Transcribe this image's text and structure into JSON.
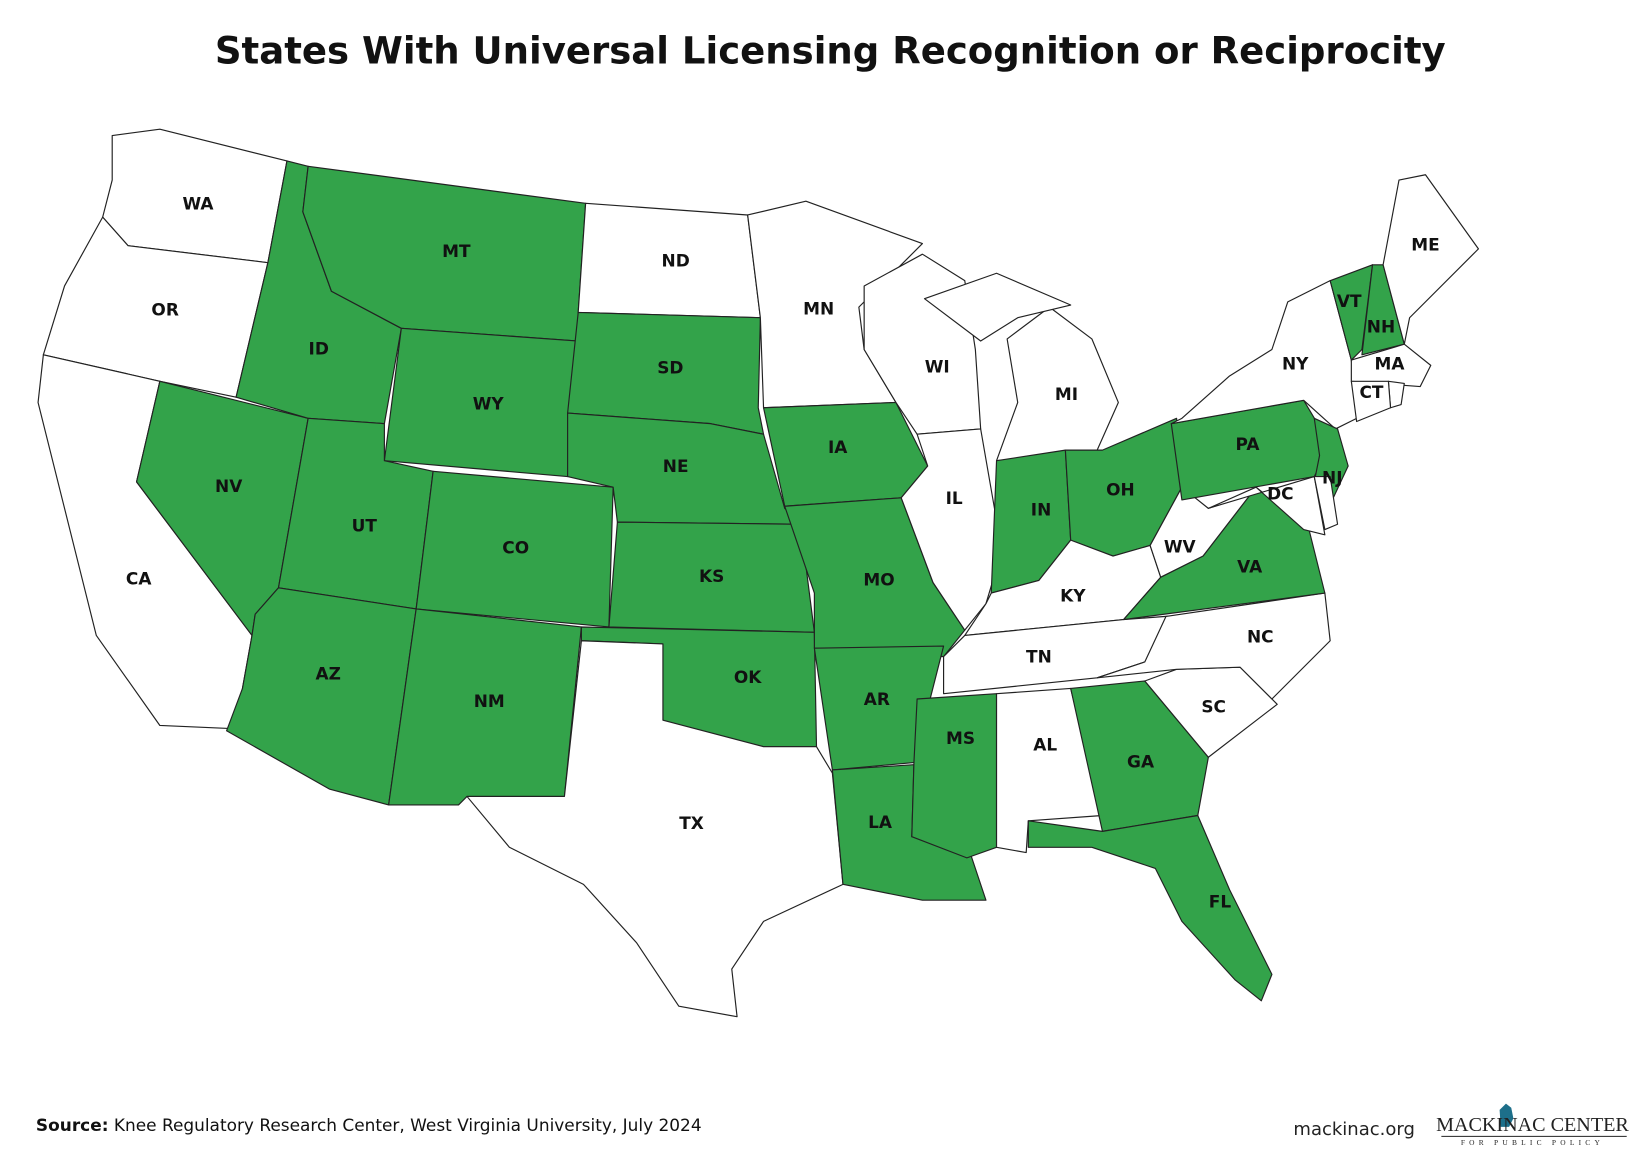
{
  "title": "States With Universal Licensing Recognition or Reciprocity",
  "states": [
    {
      "abbr": "WA",
      "color": "#ffffff"
    },
    {
      "abbr": "OR",
      "color": "#ffffff"
    },
    {
      "abbr": "CA",
      "color": "#ffffff"
    },
    {
      "abbr": "NV",
      "color": "#33a34a"
    },
    {
      "abbr": "ID",
      "color": "#33a34a"
    },
    {
      "abbr": "MT",
      "color": "#33a34a"
    },
    {
      "abbr": "WY",
      "color": "#33a34a"
    },
    {
      "abbr": "UT",
      "color": "#33a34a"
    },
    {
      "abbr": "CO",
      "color": "#33a34a"
    },
    {
      "abbr": "AZ",
      "color": "#33a34a"
    },
    {
      "abbr": "NM",
      "color": "#33a34a"
    },
    {
      "abbr": "ND",
      "color": "#ffffff"
    },
    {
      "abbr": "SD",
      "color": "#33a34a"
    },
    {
      "abbr": "NE",
      "color": "#33a34a"
    },
    {
      "abbr": "KS",
      "color": "#33a34a"
    },
    {
      "abbr": "OK",
      "color": "#33a34a"
    },
    {
      "abbr": "TX",
      "color": "#ffffff"
    },
    {
      "abbr": "MN",
      "color": "#ffffff"
    },
    {
      "abbr": "IA",
      "color": "#33a34a"
    },
    {
      "abbr": "MO",
      "color": "#33a34a"
    },
    {
      "abbr": "AR",
      "color": "#33a34a"
    },
    {
      "abbr": "LA",
      "color": "#33a34a"
    },
    {
      "abbr": "WI",
      "color": "#ffffff"
    },
    {
      "abbr": "IL",
      "color": "#ffffff"
    },
    {
      "abbr": "MI",
      "color": "#ffffff"
    },
    {
      "abbr": "IN",
      "color": "#33a34a"
    },
    {
      "abbr": "OH",
      "color": "#33a34a"
    },
    {
      "abbr": "KY",
      "color": "#ffffff"
    },
    {
      "abbr": "TN",
      "color": "#ffffff"
    },
    {
      "abbr": "MS",
      "color": "#33a34a"
    },
    {
      "abbr": "AL",
      "color": "#ffffff"
    },
    {
      "abbr": "GA",
      "color": "#33a34a"
    },
    {
      "abbr": "FL",
      "color": "#33a34a"
    },
    {
      "abbr": "SC",
      "color": "#ffffff"
    },
    {
      "abbr": "NC",
      "color": "#ffffff"
    },
    {
      "abbr": "VA",
      "color": "#33a34a"
    },
    {
      "abbr": "WV",
      "color": "#ffffff"
    },
    {
      "abbr": "PA",
      "color": "#33a34a"
    },
    {
      "abbr": "NY",
      "color": "#ffffff"
    },
    {
      "abbr": "NJ",
      "color": "#33a34a"
    },
    {
      "abbr": "DC",
      "color": "#ffffff"
    },
    {
      "abbr": "VT",
      "color": "#33a34a"
    },
    {
      "abbr": "NH",
      "color": "#33a34a"
    },
    {
      "abbr": "ME",
      "color": "#ffffff"
    },
    {
      "abbr": "MA",
      "color": "#ffffff"
    },
    {
      "abbr": "CT",
      "color": "#ffffff"
    }
  ],
  "footer": {
    "source_label": "Source:",
    "source_text": "Knee Regulatory Research Center, West Virginia University, July 2024",
    "url": "mackinac.org",
    "logo_name": "MACKINAC CENTER",
    "logo_tagline": "FOR PUBLIC POLICY"
  }
}
